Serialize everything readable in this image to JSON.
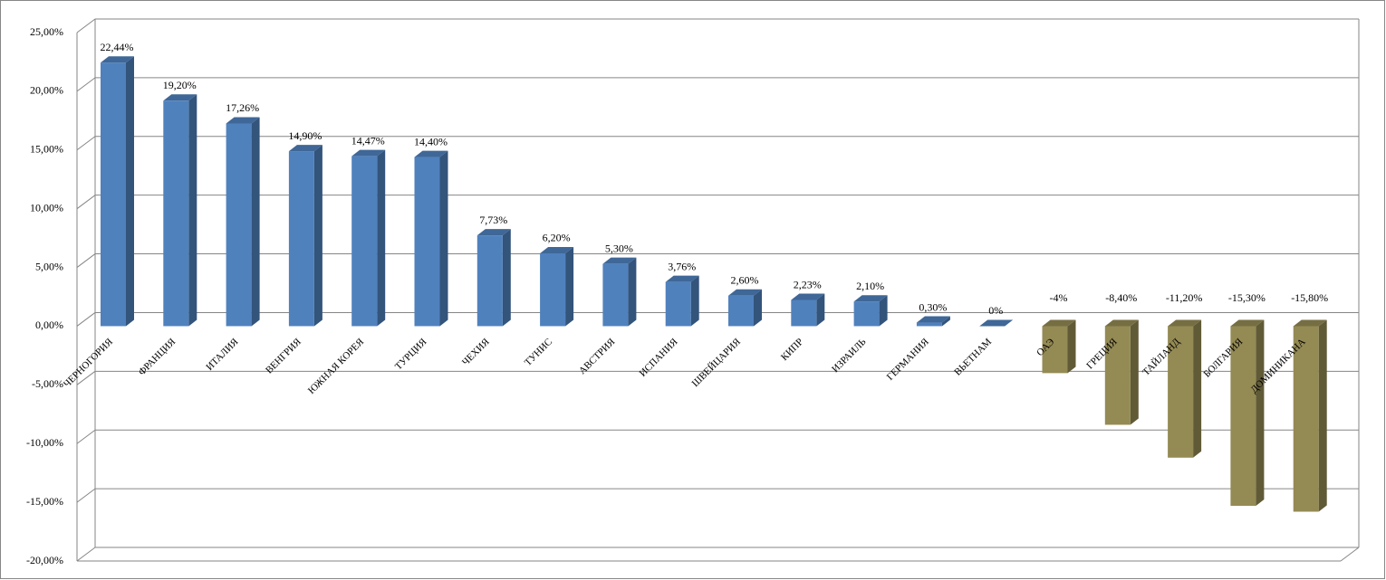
{
  "chart_data": {
    "type": "bar3d",
    "categories": [
      "ЧЕРНОГОРИЯ",
      "ФРАНЦИЯ",
      "ИТАЛИЯ",
      "ВЕНГРИЯ",
      "ЮЖНАЯ КОРЕЯ",
      "ТУРЦИЯ",
      "ЧЕХИЯ",
      "ТУНИС",
      "АВСТРИЯ",
      "ИСПАНИЯ",
      "ШВЕЙЦАРИЯ",
      "КИПР",
      "ИЗРАИЛЬ",
      "ГЕРМАНИЯ",
      "ВЬЕТНАМ",
      "ОАЭ",
      "ГРЕЦИЯ",
      "ТАЙЛАНД",
      "БОЛГАРИЯ",
      "ДОМИНИКАНА"
    ],
    "values": [
      22.44,
      19.2,
      17.26,
      14.9,
      14.47,
      14.4,
      7.73,
      6.2,
      5.3,
      3.76,
      2.6,
      2.23,
      2.1,
      0.3,
      0,
      -4,
      -8.4,
      -11.2,
      -15.3,
      -15.8
    ],
    "value_labels": [
      "22,44%",
      "19,20%",
      "17,26%",
      "14,90%",
      "14,47%",
      "14,40%",
      "7,73%",
      "6,20%",
      "5,30%",
      "3,76%",
      "2,60%",
      "2,23%",
      "2,10%",
      "0,30%",
      "0%",
      "-4%",
      "-8,40%",
      "-11,20%",
      "-15,30%",
      "-15,80%"
    ],
    "positive_color": "#4f81bd",
    "negative_color": "#948a54",
    "ylim": [
      -20,
      25
    ],
    "yticks": [
      {
        "value": -20,
        "label": "-20,00%"
      },
      {
        "value": -15,
        "label": "-15,00%"
      },
      {
        "value": -10,
        "label": "-10,00%"
      },
      {
        "value": -5,
        "label": "-5,00%"
      },
      {
        "value": 0,
        "label": "0,00%"
      },
      {
        "value": 5,
        "label": "5,00%"
      },
      {
        "value": 10,
        "label": "10,00%"
      },
      {
        "value": 15,
        "label": "15,00%"
      },
      {
        "value": 20,
        "label": "20,00%"
      },
      {
        "value": 25,
        "label": "25,00%"
      }
    ],
    "grid": true
  }
}
